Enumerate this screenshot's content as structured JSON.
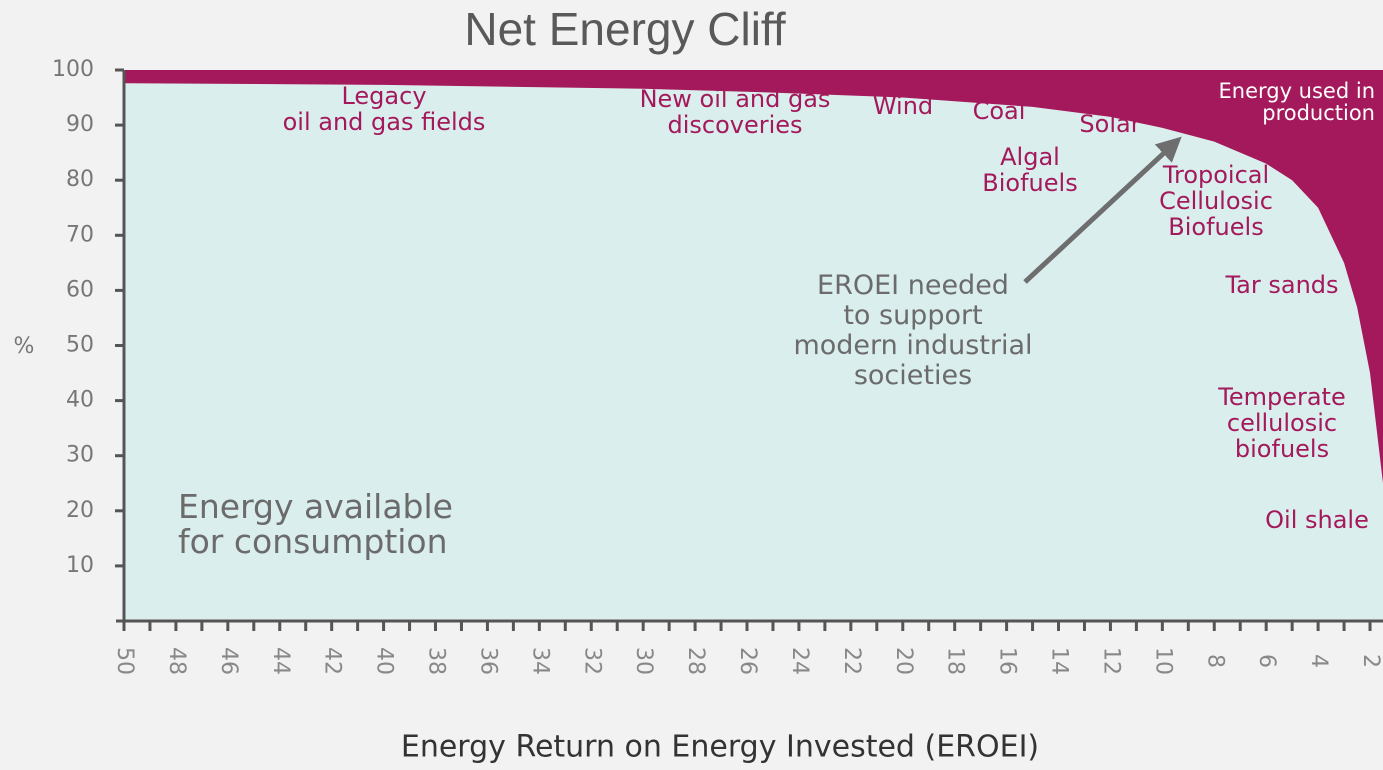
{
  "chart_data": {
    "type": "area",
    "title": "Net Energy Cliff",
    "x_label": "Energy Return on Energy Invested (EROEI)",
    "y_label": "%",
    "x": [
      50,
      40,
      30,
      25,
      20,
      15,
      12,
      10,
      8,
      6,
      5,
      4,
      3,
      2.5,
      2,
      1.5
    ],
    "series": [
      {
        "name": "Energy available for consumption",
        "color": "#dbeeee",
        "values": [
          97.6,
          97.3,
          96.6,
          95.9,
          95,
          93.3,
          91.5,
          89.5,
          87,
          83,
          80,
          75,
          65,
          57,
          45,
          25
        ]
      },
      {
        "name": "Energy used in production",
        "color": "#a3195b"
      }
    ],
    "xlim": [
      50,
      1.5
    ],
    "ylim": [
      0,
      100
    ],
    "xticks": [
      50,
      48,
      46,
      44,
      42,
      40,
      38,
      36,
      34,
      32,
      30,
      28,
      26,
      24,
      22,
      20,
      18,
      16,
      14,
      12,
      10,
      8,
      6,
      4,
      2
    ],
    "yticks": [
      10,
      20,
      30,
      40,
      50,
      60,
      70,
      80,
      90,
      100
    ],
    "annotations": [
      {
        "lines": [
          "Legacy",
          "oil and gas fields"
        ]
      },
      {
        "lines": [
          "New oil and gas",
          "discoveries"
        ]
      },
      {
        "lines": [
          "Wind"
        ]
      },
      {
        "lines": [
          "Coal"
        ]
      },
      {
        "lines": [
          "Solar"
        ]
      },
      {
        "lines": [
          "Algal",
          "Biofuels"
        ]
      },
      {
        "lines": [
          "Tropoical",
          "Cellulosic",
          "Biofuels"
        ]
      },
      {
        "lines": [
          "Tar sands"
        ]
      },
      {
        "lines": [
          "Temperate",
          "cellulosic",
          "biofuels"
        ]
      },
      {
        "lines": [
          "Oil shale"
        ]
      },
      {
        "lines": [
          "EROEI needed",
          "to support",
          "modern industrial",
          "societies"
        ]
      }
    ]
  }
}
